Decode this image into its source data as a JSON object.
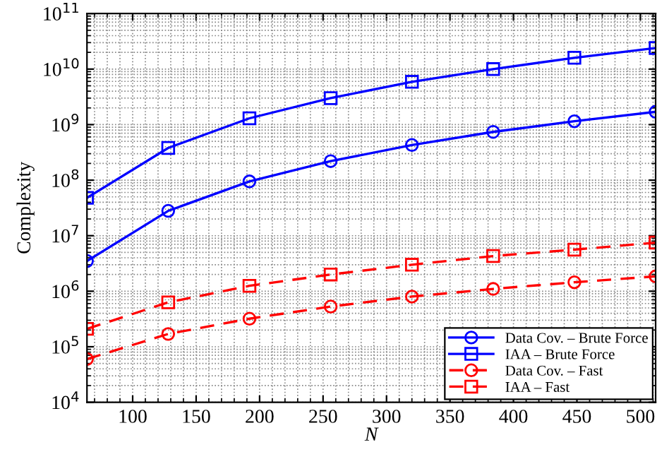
{
  "chart_data": {
    "type": "line",
    "xlabel": "N",
    "ylabel": "Complexity",
    "x": [
      64,
      128,
      192,
      256,
      320,
      384,
      448,
      512
    ],
    "series": [
      {
        "name": "Data Cov. – Brute Force",
        "color": "#0000ff",
        "marker": "circle",
        "line_style": "solid",
        "values": [
          3500000.0,
          28000000.0,
          95000000.0,
          220000000.0,
          430000000.0,
          740000000.0,
          1150000000.0,
          1700000000.0
        ]
      },
      {
        "name": "IAA – Brute Force",
        "color": "#0000ff",
        "marker": "square",
        "line_style": "solid",
        "values": [
          48000000.0,
          380000000.0,
          1300000000.0,
          3000000000.0,
          5900000000.0,
          10000000000.0,
          16000000000.0,
          24000000000.0
        ]
      },
      {
        "name": "Data Cov. – Fast",
        "color": "#ff0000",
        "marker": "circle",
        "line_style": "dashed",
        "values": [
          60000.0,
          170000.0,
          320000.0,
          530000.0,
          800000.0,
          1100000.0,
          1450000.0,
          1850000.0
        ]
      },
      {
        "name": "IAA – Fast",
        "color": "#ff0000",
        "marker": "square",
        "line_style": "dashed",
        "values": [
          210000.0,
          630000.0,
          1250000.0,
          2000000.0,
          3000000.0,
          4300000.0,
          5600000.0,
          7500000.0
        ]
      }
    ],
    "log": "y",
    "xlim": [
      64,
      512
    ],
    "ylim": [
      10000.0,
      100000000000.0
    ],
    "xticks": [
      100,
      150,
      200,
      250,
      300,
      350,
      400,
      450,
      500
    ],
    "yticks": [
      {
        "value": 10000.0,
        "label": "10$^{4}$"
      },
      {
        "value": 100000.0,
        "label": "10$^{5}$"
      },
      {
        "value": 1000000.0,
        "label": "10$^{6}$"
      },
      {
        "value": 10000000.0,
        "label": "10$^{7}$"
      },
      {
        "value": 100000000.0,
        "label": "10$^{8}$"
      },
      {
        "value": 1000000000.0,
        "label": "10$^{9}$"
      },
      {
        "value": 10000000000.0,
        "label": "10$^{10}$"
      },
      {
        "value": 100000000000.0,
        "label": "10$^{11}$"
      }
    ],
    "grid": true,
    "legend": "bottom right"
  }
}
